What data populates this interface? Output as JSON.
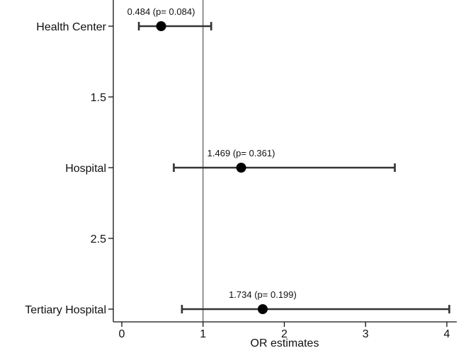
{
  "chart_data": {
    "type": "scatter",
    "xlabel": "OR estimates",
    "ylabel": "",
    "title": "",
    "xlim": [
      0,
      4
    ],
    "x_ticks": [
      0,
      1,
      2,
      3,
      4
    ],
    "ylim": [
      1,
      3
    ],
    "y_ticks": [
      {
        "value": 1,
        "label": "Health Center"
      },
      {
        "value": 1.5,
        "label": "1.5"
      },
      {
        "value": 2,
        "label": "Hospital"
      },
      {
        "value": 2.5,
        "label": "2.5"
      },
      {
        "value": 3,
        "label": "Tertiary Hospital"
      }
    ],
    "reference_line_x": 1,
    "points": [
      {
        "category": "Health Center",
        "y": 1,
        "estimate": 0.484,
        "ci_low": 0.21,
        "ci_high": 1.1,
        "annotation": "0.484  (p= 0.084)"
      },
      {
        "category": "Hospital",
        "y": 2,
        "estimate": 1.469,
        "ci_low": 0.64,
        "ci_high": 3.36,
        "annotation": "1.469 (p= 0.361)"
      },
      {
        "category": "Tertiary Hospital",
        "y": 3,
        "estimate": 1.734,
        "ci_low": 0.74,
        "ci_high": 4.03,
        "annotation": "1.734 (p= 0.199)"
      }
    ],
    "grid": false,
    "colors": {
      "point": "#000000",
      "errorbar": "#333333",
      "axis": "#111111",
      "refline": "#333333"
    }
  }
}
